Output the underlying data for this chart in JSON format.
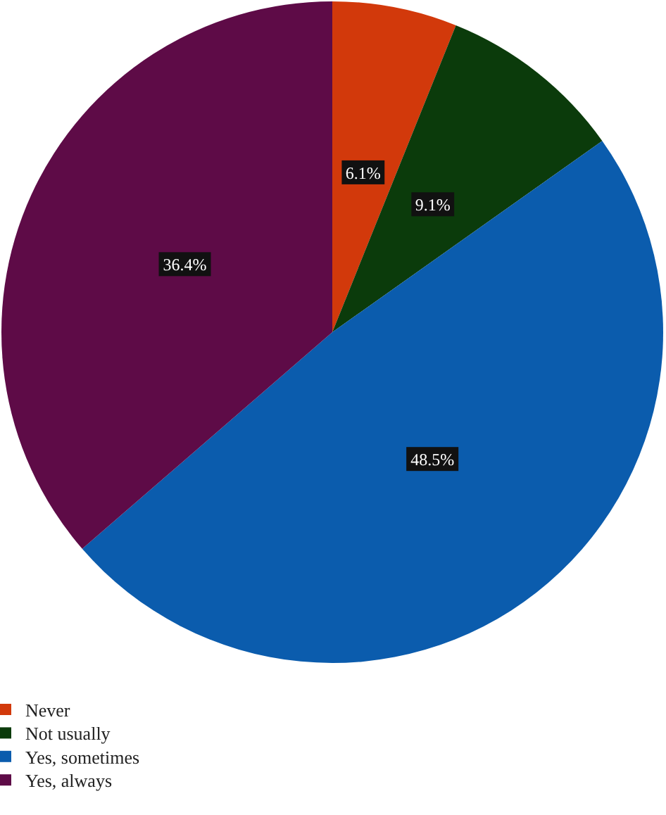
{
  "chart_data": {
    "type": "pie",
    "categories": [
      "Never",
      "Not usually",
      "Yes, sometimes",
      "Yes, always"
    ],
    "values": [
      6.1,
      9.1,
      48.5,
      36.4
    ],
    "colors": [
      "#d2390b",
      "#0b3b0b",
      "#0b5cad",
      "#5e0b47"
    ],
    "value_labels": [
      "6.1%",
      "9.1%",
      "48.5%",
      "36.4%"
    ],
    "legend": "bottom left"
  }
}
